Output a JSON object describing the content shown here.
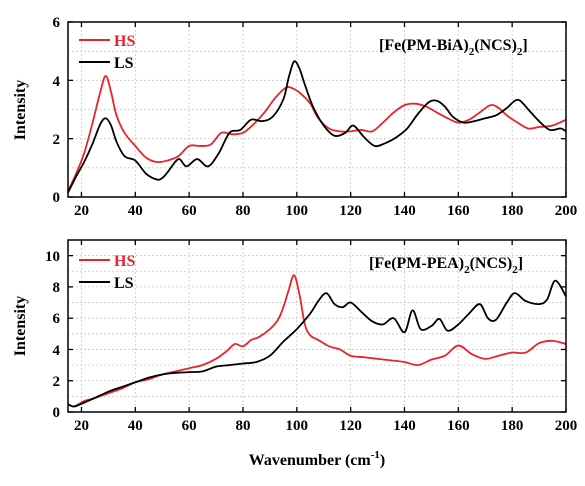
{
  "chart_data": [
    {
      "type": "line",
      "title": "",
      "compound_label": "[Fe(PM-BiA)2(NCS)2]",
      "xlabel": "",
      "ylabel": "Intensity",
      "xlim": [
        15,
        200
      ],
      "ylim": [
        0,
        6
      ],
      "xticks": [
        20,
        40,
        60,
        80,
        100,
        120,
        140,
        160,
        180,
        200
      ],
      "yticks": [
        0,
        2,
        4,
        6
      ],
      "grid": true,
      "legend_position": "top-left",
      "series": [
        {
          "name": "HS",
          "color": "#e8242a",
          "x": [
            15,
            18,
            21,
            24,
            27,
            29,
            31,
            33,
            36,
            40,
            44,
            48,
            52,
            56,
            60,
            64,
            68,
            72,
            76,
            80,
            84,
            88,
            92,
            96,
            99,
            102,
            105,
            108,
            112,
            116,
            120,
            124,
            128,
            132,
            136,
            140,
            144,
            148,
            152,
            156,
            160,
            164,
            168,
            172,
            175,
            178,
            182,
            186,
            190,
            195,
            200
          ],
          "y": [
            0.2,
            0.8,
            1.5,
            2.5,
            3.6,
            4.15,
            3.6,
            2.8,
            2.2,
            1.75,
            1.35,
            1.2,
            1.25,
            1.4,
            1.75,
            1.75,
            1.8,
            2.2,
            2.15,
            2.2,
            2.5,
            2.9,
            3.4,
            3.75,
            3.7,
            3.5,
            3.2,
            2.7,
            2.35,
            2.25,
            2.25,
            2.3,
            2.25,
            2.55,
            2.9,
            3.15,
            3.2,
            3.1,
            2.9,
            2.7,
            2.55,
            2.65,
            2.9,
            3.15,
            3.05,
            2.8,
            2.55,
            2.35,
            2.4,
            2.45,
            2.65
          ]
        },
        {
          "name": "LS",
          "color": "#000000",
          "x": [
            15,
            18,
            21,
            24,
            27,
            29,
            31,
            33,
            36,
            40,
            44,
            48,
            50,
            52,
            56,
            59,
            63,
            67,
            71,
            75,
            79,
            83,
            87,
            91,
            95,
            97,
            99,
            101,
            103,
            106,
            110,
            114,
            118,
            121,
            125,
            129,
            133,
            137,
            141,
            145,
            149,
            152,
            155,
            158,
            162,
            166,
            170,
            174,
            178,
            181,
            183,
            186,
            190,
            194,
            198,
            200
          ],
          "y": [
            0.15,
            0.7,
            1.2,
            1.8,
            2.5,
            2.7,
            2.45,
            1.9,
            1.4,
            1.25,
            0.8,
            0.6,
            0.65,
            0.85,
            1.3,
            1.05,
            1.3,
            1.05,
            1.5,
            2.2,
            2.3,
            2.65,
            2.6,
            2.75,
            3.35,
            4.1,
            4.65,
            4.4,
            3.85,
            3.1,
            2.45,
            2.1,
            2.2,
            2.45,
            2.05,
            1.75,
            1.85,
            2.05,
            2.35,
            2.85,
            3.25,
            3.3,
            3.1,
            2.75,
            2.55,
            2.6,
            2.7,
            2.8,
            3.05,
            3.3,
            3.3,
            3.0,
            2.6,
            2.3,
            2.35,
            2.25
          ]
        }
      ]
    },
    {
      "type": "line",
      "title": "",
      "compound_label": "[Fe(PM-PEA)2(NCS)2]",
      "xlabel": "Wavenumber (cm-1)",
      "ylabel": "Intensity",
      "xlim": [
        15,
        200
      ],
      "ylim": [
        0,
        11
      ],
      "xticks": [
        20,
        40,
        60,
        80,
        100,
        120,
        140,
        160,
        180,
        200
      ],
      "yticks": [
        0,
        2,
        4,
        6,
        8,
        10
      ],
      "grid": true,
      "legend_position": "top-left",
      "series": [
        {
          "name": "HS",
          "color": "#e8242a",
          "x": [
            15,
            17,
            19,
            21,
            25,
            30,
            35,
            40,
            45,
            50,
            55,
            60,
            65,
            70,
            74,
            77,
            80,
            83,
            86,
            90,
            93,
            95,
            97,
            99,
            101,
            103,
            105,
            108,
            112,
            116,
            120,
            125,
            130,
            135,
            140,
            145,
            150,
            155,
            160,
            165,
            170,
            175,
            180,
            185,
            190,
            195,
            200
          ],
          "y": [
            0.5,
            0.35,
            0.5,
            0.7,
            0.9,
            1.2,
            1.5,
            1.9,
            2.1,
            2.4,
            2.6,
            2.8,
            3.0,
            3.4,
            3.9,
            4.35,
            4.2,
            4.6,
            4.8,
            5.3,
            5.9,
            6.7,
            7.8,
            8.75,
            7.5,
            5.6,
            4.9,
            4.6,
            4.2,
            4.0,
            3.6,
            3.5,
            3.4,
            3.3,
            3.2,
            3.0,
            3.35,
            3.6,
            4.25,
            3.7,
            3.4,
            3.6,
            3.8,
            3.8,
            4.4,
            4.55,
            4.35
          ]
        },
        {
          "name": "LS",
          "color": "#000000",
          "x": [
            15,
            17,
            19,
            21,
            25,
            30,
            35,
            40,
            45,
            50,
            55,
            60,
            65,
            70,
            75,
            80,
            85,
            90,
            95,
            100,
            105,
            108,
            111,
            114,
            117,
            120,
            124,
            128,
            132,
            136,
            140,
            143,
            146,
            150,
            153,
            156,
            160,
            164,
            168,
            171,
            174,
            178,
            181,
            185,
            190,
            193,
            196,
            200
          ],
          "y": [
            0.5,
            0.35,
            0.45,
            0.6,
            0.9,
            1.3,
            1.6,
            1.9,
            2.2,
            2.4,
            2.5,
            2.55,
            2.6,
            2.9,
            3.0,
            3.1,
            3.2,
            3.6,
            4.5,
            5.3,
            6.3,
            7.1,
            7.6,
            6.9,
            6.7,
            7.0,
            6.4,
            5.8,
            5.6,
            6.0,
            5.1,
            6.5,
            5.3,
            5.5,
            5.95,
            5.2,
            5.6,
            6.3,
            6.9,
            6.0,
            5.9,
            7.0,
            7.6,
            7.1,
            6.9,
            7.2,
            8.4,
            7.4
          ]
        }
      ]
    }
  ],
  "ui": {
    "panel1": {
      "compound_main": "[Fe(PM-BiA)",
      "compound_sub1": "2",
      "compound_mid": "(NCS)",
      "compound_sub2": "2",
      "compound_end": "]",
      "legend_hs": "HS",
      "legend_ls": "LS",
      "ylabel": "Intensity",
      "yticklabels": [
        "0",
        "2",
        "4",
        "6"
      ],
      "xticklabels": [
        "20",
        "40",
        "60",
        "80",
        "100",
        "120",
        "140",
        "160",
        "180",
        "200"
      ]
    },
    "panel2": {
      "compound_main": "[Fe(PM-PEA)",
      "compound_sub1": "2",
      "compound_mid": "(NCS)",
      "compound_sub2": "2",
      "compound_end": "]",
      "legend_hs": "HS",
      "legend_ls": "LS",
      "ylabel": "Intensity",
      "yticklabels": [
        "0",
        "2",
        "4",
        "6",
        "8",
        "10"
      ],
      "xticklabels": [
        "20",
        "40",
        "60",
        "80",
        "100",
        "120",
        "140",
        "160",
        "180",
        "200"
      ]
    },
    "xlabel_main": "Wavenumber (cm",
    "xlabel_sup": "-1",
    "xlabel_end": ")"
  },
  "colors": {
    "hs": "#e8242a",
    "ls": "#000000",
    "grid": "#c8c8c8"
  }
}
